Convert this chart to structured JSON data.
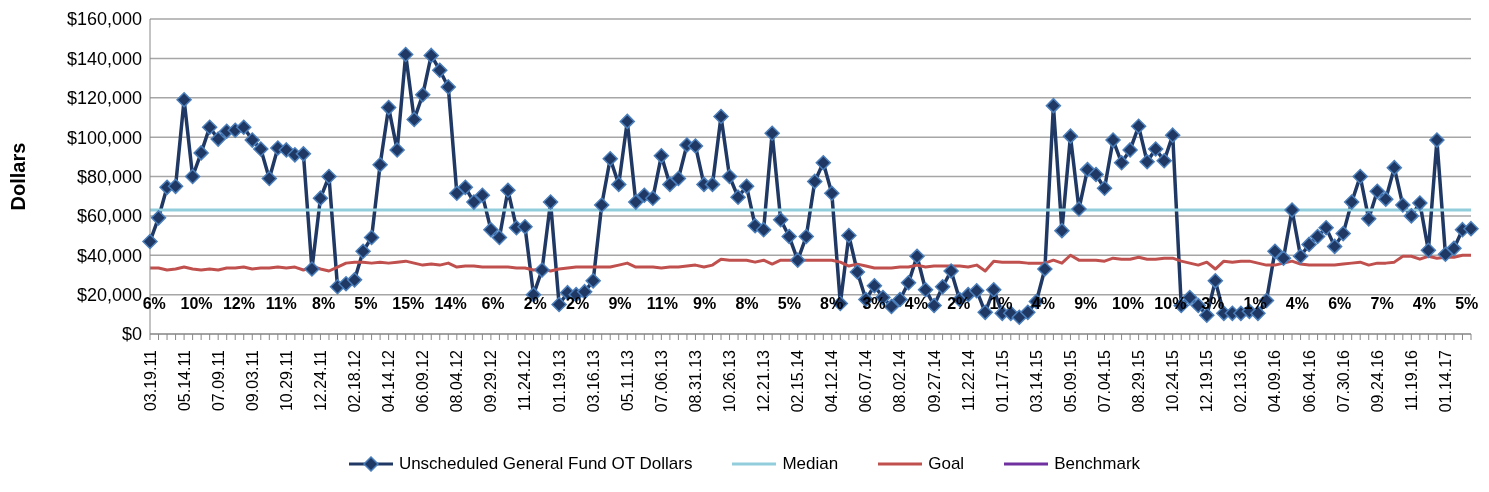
{
  "chart_data": {
    "type": "line",
    "ylabel": "Dollars",
    "categories": [
      "03.19.11",
      null,
      null,
      null,
      "05.14.11",
      null,
      null,
      null,
      "07.09.11",
      null,
      null,
      null,
      "09.03.11",
      null,
      null,
      null,
      "10.29.11",
      null,
      null,
      null,
      "12.24.11",
      null,
      null,
      null,
      "02.18.12",
      null,
      null,
      null,
      "04.14.12",
      null,
      null,
      null,
      "06.09.12",
      null,
      null,
      null,
      "08.04.12",
      null,
      null,
      null,
      "09.29.12",
      null,
      null,
      null,
      "11.24.12",
      null,
      null,
      null,
      "01.19.13",
      null,
      null,
      null,
      "03.16.13",
      null,
      null,
      null,
      "05.11.13",
      null,
      null,
      null,
      "07.06.13",
      null,
      null,
      null,
      "08.31.13",
      null,
      null,
      null,
      "10.26.13",
      null,
      null,
      null,
      "12.21.13",
      null,
      null,
      null,
      "02.15.14",
      null,
      null,
      null,
      "04.12.14",
      null,
      null,
      null,
      "06.07.14",
      null,
      null,
      null,
      "08.02.14",
      null,
      null,
      null,
      "09.27.14",
      null,
      null,
      null,
      "11.22.14",
      null,
      null,
      null,
      "01.17.15",
      null,
      null,
      null,
      "03.14.15",
      null,
      null,
      null,
      "05.09.15",
      null,
      null,
      null,
      "07.04.15",
      null,
      null,
      null,
      "08.29.15",
      null,
      null,
      null,
      "10.24.15",
      null,
      null,
      null,
      "12.19.15",
      null,
      null,
      null,
      "02.13.16",
      null,
      null,
      null,
      "04.09.16",
      null,
      null,
      null,
      "06.04.16",
      null,
      null,
      null,
      "07.30.16",
      null,
      null,
      null,
      "09.24.16",
      null,
      null,
      null,
      "11.19.16",
      null,
      null,
      null,
      "01.14.17",
      null,
      null,
      null
    ],
    "series": [
      {
        "name": "Unscheduled General Fund OT Dollars",
        "color": "#1f3864",
        "marker": "diamond",
        "values": [
          47000,
          59000,
          74500,
          75000,
          119000,
          80000,
          92000,
          105000,
          99000,
          103000,
          103500,
          105000,
          98500,
          94000,
          79000,
          94500,
          93500,
          91000,
          91500,
          33000,
          69000,
          80000,
          24000,
          25500,
          27500,
          42000,
          49000,
          86000,
          115000,
          93500,
          142000,
          109000,
          121500,
          141500,
          134000,
          125500,
          71500,
          74500,
          67000,
          70500,
          53000,
          49000,
          73000,
          54000,
          54500,
          20000,
          32500,
          67000,
          15000,
          21000,
          20000,
          21500,
          27000,
          65500,
          89000,
          76000,
          108000,
          67000,
          70500,
          69000,
          90500,
          76000,
          79000,
          96000,
          95500,
          76000,
          76000,
          110500,
          80000,
          69500,
          75000,
          55000,
          53000,
          102000,
          58000,
          49500,
          37500,
          49500,
          77500,
          87000,
          71500,
          15500,
          50000,
          31500,
          17500,
          24500,
          18500,
          14000,
          17500,
          26000,
          39500,
          22500,
          14500,
          24000,
          32000,
          17500,
          20000,
          22000,
          11000,
          22500,
          10500,
          10500,
          8500,
          11000,
          16500,
          33000,
          116000,
          52500,
          100500,
          63500,
          83500,
          81000,
          74000,
          98500,
          87000,
          93500,
          105500,
          87500,
          94000,
          88000,
          101000,
          14500,
          18500,
          14500,
          9500,
          27000,
          10500,
          10500,
          10500,
          11500,
          10500,
          17000,
          42000,
          38500,
          63000,
          39500,
          45500,
          49500,
          54000,
          44500,
          51000,
          67000,
          80000,
          58500,
          72500,
          68500,
          84500,
          65500,
          60000,
          66500,
          42500,
          98500,
          40500,
          43500,
          53000,
          53500
        ]
      },
      {
        "name": "Median",
        "color": "#92cddc",
        "marker": "none",
        "values": [
          63000,
          63000,
          63000,
          63000,
          63000,
          63000,
          63000,
          63000,
          63000,
          63000,
          63000,
          63000,
          63000,
          63000,
          63000,
          63000,
          63000,
          63000,
          63000,
          63000,
          63000,
          63000,
          63000,
          63000,
          63000,
          63000,
          63000,
          63000,
          63000,
          63000,
          63000,
          63000,
          63000,
          63000,
          63000,
          63000,
          63000,
          63000,
          63000,
          63000,
          63000,
          63000,
          63000,
          63000,
          63000,
          63000,
          63000,
          63000,
          63000,
          63000,
          63000,
          63000,
          63000,
          63000,
          63000,
          63000,
          63000,
          63000,
          63000,
          63000,
          63000,
          63000,
          63000,
          63000,
          63000,
          63000,
          63000,
          63000,
          63000,
          63000,
          63000,
          63000,
          63000,
          63000,
          63000,
          63000,
          63000,
          63000,
          63000,
          63000,
          63000,
          63000,
          63000,
          63000,
          63000,
          63000,
          63000,
          63000,
          63000,
          63000,
          63000,
          63000,
          63000,
          63000,
          63000,
          63000,
          63000,
          63000,
          63000,
          63000,
          63000,
          63000,
          63000,
          63000,
          63000,
          63000,
          63000,
          63000,
          63000,
          63000,
          63000,
          63000,
          63000,
          63000,
          63000,
          63000,
          63000,
          63000,
          63000,
          63000,
          63000,
          63000,
          63000,
          63000,
          63000,
          63000,
          63000,
          63000,
          63000,
          63000,
          63000,
          63000,
          63000,
          63000,
          63000,
          63000,
          63000,
          63000,
          63000,
          63000,
          63000,
          63000,
          63000,
          63000,
          63000,
          63000,
          63000,
          63000,
          63000,
          63000,
          63000,
          63000,
          63000,
          63000,
          63000,
          63000
        ]
      },
      {
        "name": "Goal",
        "color": "#c0504d",
        "marker": "none",
        "values": [
          33500,
          33500,
          32500,
          33000,
          34000,
          33000,
          32500,
          33000,
          32500,
          33500,
          33500,
          34000,
          33000,
          33500,
          33500,
          34000,
          33500,
          34000,
          32500,
          34500,
          33000,
          32000,
          34000,
          36000,
          36500,
          36500,
          36000,
          36500,
          36000,
          36500,
          37000,
          36000,
          35000,
          35500,
          35000,
          36000,
          34000,
          34500,
          34500,
          34000,
          34000,
          34000,
          34000,
          33500,
          33500,
          32500,
          33000,
          32000,
          33000,
          33500,
          34000,
          34000,
          34000,
          34000,
          34000,
          35000,
          36000,
          34000,
          34000,
          34000,
          33500,
          34000,
          34000,
          34500,
          35000,
          34000,
          35000,
          38000,
          37500,
          37500,
          37500,
          36500,
          37500,
          35500,
          37500,
          37500,
          37500,
          37500,
          37500,
          37500,
          37500,
          36500,
          34500,
          35500,
          34500,
          33500,
          33500,
          33500,
          34000,
          34000,
          35000,
          34000,
          34500,
          34500,
          34500,
          34500,
          34000,
          35000,
          32000,
          37000,
          36500,
          36500,
          36500,
          36000,
          36000,
          36000,
          37500,
          36000,
          40000,
          37500,
          37500,
          37500,
          37000,
          38500,
          38000,
          38000,
          39000,
          38000,
          38000,
          38500,
          38500,
          37000,
          36000,
          35000,
          36500,
          33000,
          37000,
          36500,
          37000,
          37000,
          36000,
          35000,
          35000,
          36000,
          37000,
          35500,
          35000,
          35000,
          35000,
          35000,
          35500,
          36000,
          36500,
          35000,
          36000,
          36000,
          36500,
          39500,
          39500,
          38000,
          39500,
          38500,
          39000,
          39000,
          40000,
          40000
        ]
      },
      {
        "name": "Benchmark",
        "color": "#7030a0",
        "marker": "none",
        "values": [
          null,
          null,
          null,
          null,
          null,
          null,
          null,
          null,
          null,
          null,
          null,
          null,
          null,
          null,
          null,
          null,
          null,
          null,
          null,
          null,
          null,
          null,
          null,
          null,
          null,
          null,
          null,
          null,
          null,
          null,
          null,
          null,
          null,
          null,
          null,
          null,
          null,
          null,
          null,
          null,
          null,
          null,
          null,
          null,
          null,
          null,
          null,
          null,
          null,
          null,
          null,
          null,
          null,
          null,
          null,
          null,
          null,
          null,
          null,
          null,
          null,
          null,
          null,
          null,
          null,
          null,
          null,
          null,
          null,
          null,
          null,
          null,
          null,
          null,
          null,
          null,
          null,
          null,
          null,
          null,
          null,
          null,
          null,
          null,
          null,
          null,
          null,
          null,
          null,
          null,
          null,
          null,
          null,
          null,
          null,
          null,
          null,
          null,
          null,
          null,
          null,
          null,
          null,
          null,
          null,
          null,
          null,
          null,
          null,
          null,
          null,
          null,
          null,
          null,
          null,
          null,
          null,
          null,
          null,
          null,
          null,
          null,
          null,
          null,
          null,
          null,
          null,
          null,
          null,
          null,
          null,
          null,
          null,
          null,
          null,
          null,
          null,
          null,
          null,
          null,
          null,
          null,
          null,
          null,
          null,
          null,
          null,
          null,
          null,
          null,
          null,
          null,
          null,
          null,
          null,
          null
        ]
      }
    ],
    "ylim": [
      0,
      160000
    ],
    "yticks": [
      {
        "value": 0,
        "label": "$0"
      },
      {
        "value": 20000,
        "label": "$20,000"
      },
      {
        "value": 40000,
        "label": "$40,000"
      },
      {
        "value": 60000,
        "label": "$60,000"
      },
      {
        "value": 80000,
        "label": "$80,000"
      },
      {
        "value": 100000,
        "label": "$100,000"
      },
      {
        "value": 120000,
        "label": "$120,000"
      },
      {
        "value": 140000,
        "label": "$140,000"
      },
      {
        "value": 160000,
        "label": "$160,000"
      }
    ],
    "grid": "y",
    "legend": "bottom",
    "annotations": [
      "6%",
      "10%",
      "12%",
      "11%",
      "8%",
      "5%",
      "15%",
      "14%",
      "6%",
      "2%",
      "2%",
      "9%",
      "11%",
      "9%",
      "8%",
      "5%",
      "8%",
      "3%",
      "4%",
      "2%",
      "1%",
      "4%",
      "9%",
      "10%",
      "10%",
      "3%",
      "1%",
      "4%",
      "6%",
      "7%",
      "4%",
      "5%"
    ]
  }
}
